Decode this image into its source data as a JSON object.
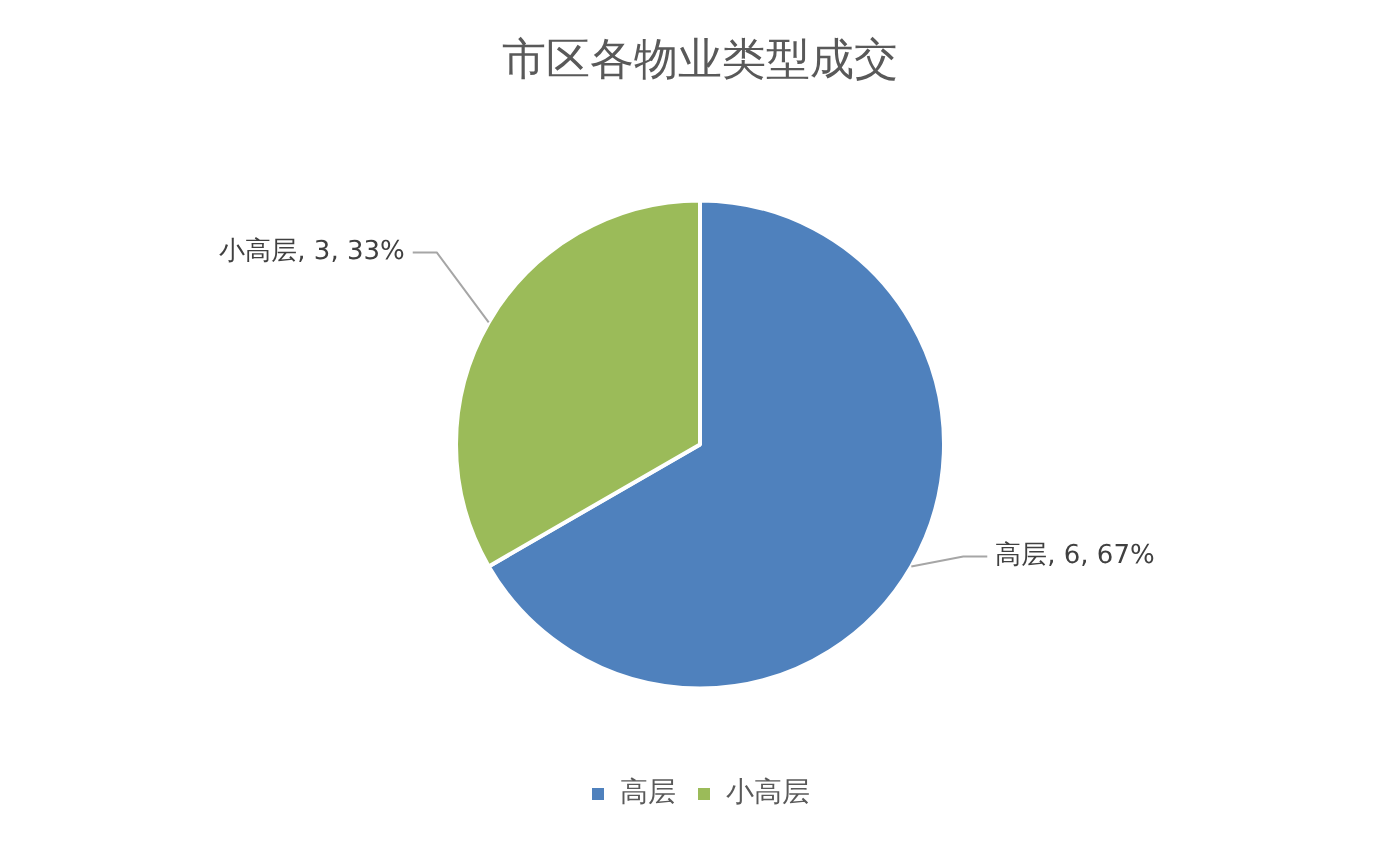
{
  "chart_data": {
    "type": "pie",
    "title": "市区各物业类型成交",
    "categories": [
      "高层",
      "小高层"
    ],
    "values": [
      6,
      3
    ],
    "colors": [
      "#4f81bd",
      "#9bbb59"
    ],
    "value_labels": [
      "高层, 6, 67%",
      "小高层, 3, 33%"
    ],
    "legend": "bottom"
  }
}
